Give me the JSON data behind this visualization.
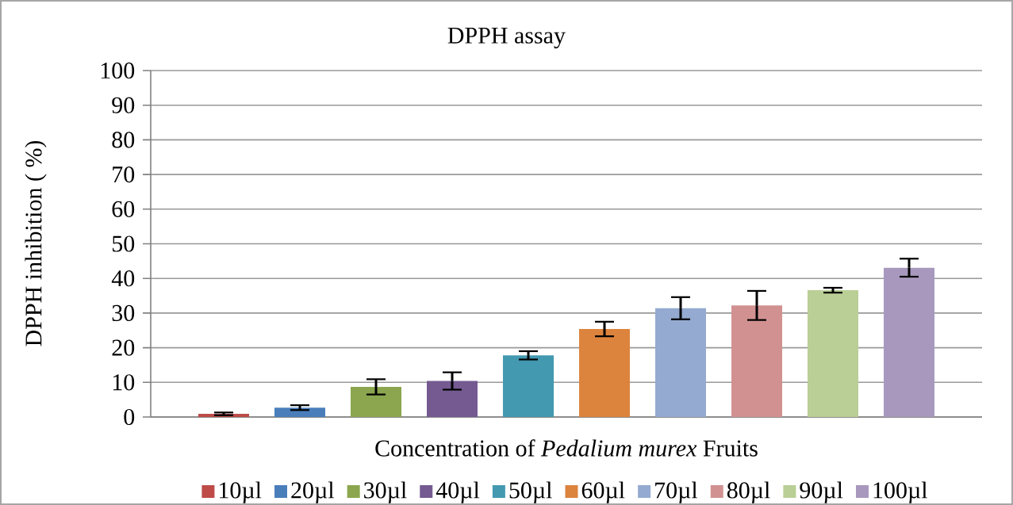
{
  "chart_data": {
    "type": "bar",
    "title": "DPPH assay",
    "xlabel": "Concentration of *Pedalium murex* Fruits",
    "ylabel": "DPPH inhibition ( %)",
    "categories": [
      null
    ],
    "series": [
      {
        "name": "10µl",
        "color": "#be4b48",
        "values": [
          0.9
        ],
        "errors": [
          0.4
        ]
      },
      {
        "name": "20µl",
        "color": "#4a7ebb",
        "values": [
          2.7
        ],
        "errors": [
          0.7
        ]
      },
      {
        "name": "30µl",
        "color": "#8ba64e",
        "values": [
          8.7
        ],
        "errors": [
          2.2
        ]
      },
      {
        "name": "40µl",
        "color": "#745a91",
        "values": [
          10.4
        ],
        "errors": [
          2.5
        ]
      },
      {
        "name": "50µl",
        "color": "#4399b0",
        "values": [
          17.8
        ],
        "errors": [
          1.2
        ]
      },
      {
        "name": "60µl",
        "color": "#dc833d",
        "values": [
          25.4
        ],
        "errors": [
          2.1
        ]
      },
      {
        "name": "70µl",
        "color": "#94aad0",
        "values": [
          31.4
        ],
        "errors": [
          3.2
        ]
      },
      {
        "name": "80µl",
        "color": "#d29191",
        "values": [
          32.2
        ],
        "errors": [
          4.2
        ]
      },
      {
        "name": "90µl",
        "color": "#b9cf96",
        "values": [
          36.6
        ],
        "errors": [
          0.7
        ]
      },
      {
        "name": "100µl",
        "color": "#a898bd",
        "values": [
          43.1
        ],
        "errors": [
          2.6
        ]
      }
    ],
    "ylim": [
      0,
      100
    ],
    "yticks": [
      0,
      10,
      20,
      30,
      40,
      50,
      60,
      70,
      80,
      90,
      100
    ],
    "grid": "y",
    "legend": "bottom"
  }
}
